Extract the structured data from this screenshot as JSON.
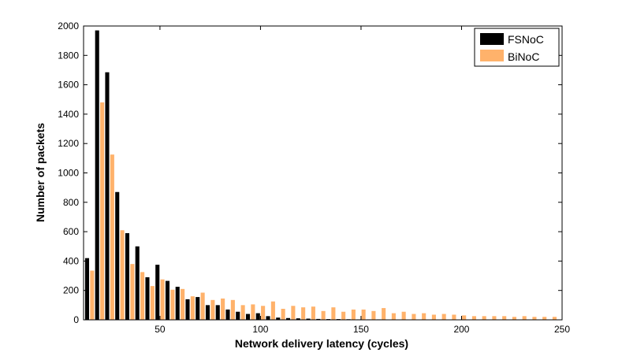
{
  "chart_data": {
    "type": "bar",
    "title": "",
    "xlabel": "Network delivery latency (cycles)",
    "ylabel": "Number of packets",
    "xlim": [
      12,
      250
    ],
    "ylim": [
      0,
      2000
    ],
    "xticks": [
      50,
      100,
      150,
      200,
      250
    ],
    "yticks": [
      0,
      200,
      400,
      600,
      800,
      1000,
      1200,
      1400,
      1600,
      1800,
      2000
    ],
    "grid": false,
    "legend_position": "top-right",
    "x": [
      15,
      20,
      25,
      30,
      35,
      40,
      45,
      50,
      55,
      60,
      65,
      70,
      75,
      80,
      85,
      90,
      95,
      100,
      105,
      110,
      115,
      120,
      125,
      130,
      135,
      140,
      145,
      150,
      155,
      160,
      165,
      170,
      175,
      180,
      185,
      190,
      195,
      200,
      205,
      210,
      215,
      220,
      225,
      230,
      235,
      240,
      245
    ],
    "series": [
      {
        "name": "FSNoC",
        "color": "#000000",
        "values": [
          420,
          1970,
          1685,
          870,
          590,
          500,
          290,
          375,
          265,
          225,
          140,
          155,
          100,
          100,
          70,
          55,
          40,
          45,
          25,
          15,
          12,
          10,
          8,
          6,
          5,
          5,
          4,
          3,
          3,
          3,
          2,
          2,
          2,
          1,
          1,
          1,
          1,
          1,
          1,
          1,
          1,
          1,
          1,
          1,
          1,
          1,
          1
        ]
      },
      {
        "name": "BiNoC",
        "color": "#FFB26B",
        "values": [
          335,
          1480,
          1125,
          610,
          380,
          325,
          230,
          275,
          205,
          210,
          160,
          185,
          135,
          145,
          135,
          100,
          105,
          95,
          125,
          75,
          95,
          85,
          90,
          60,
          85,
          55,
          70,
          70,
          60,
          80,
          45,
          55,
          40,
          45,
          35,
          40,
          35,
          30,
          25,
          25,
          25,
          25,
          20,
          25,
          20,
          20,
          20
        ]
      }
    ]
  }
}
